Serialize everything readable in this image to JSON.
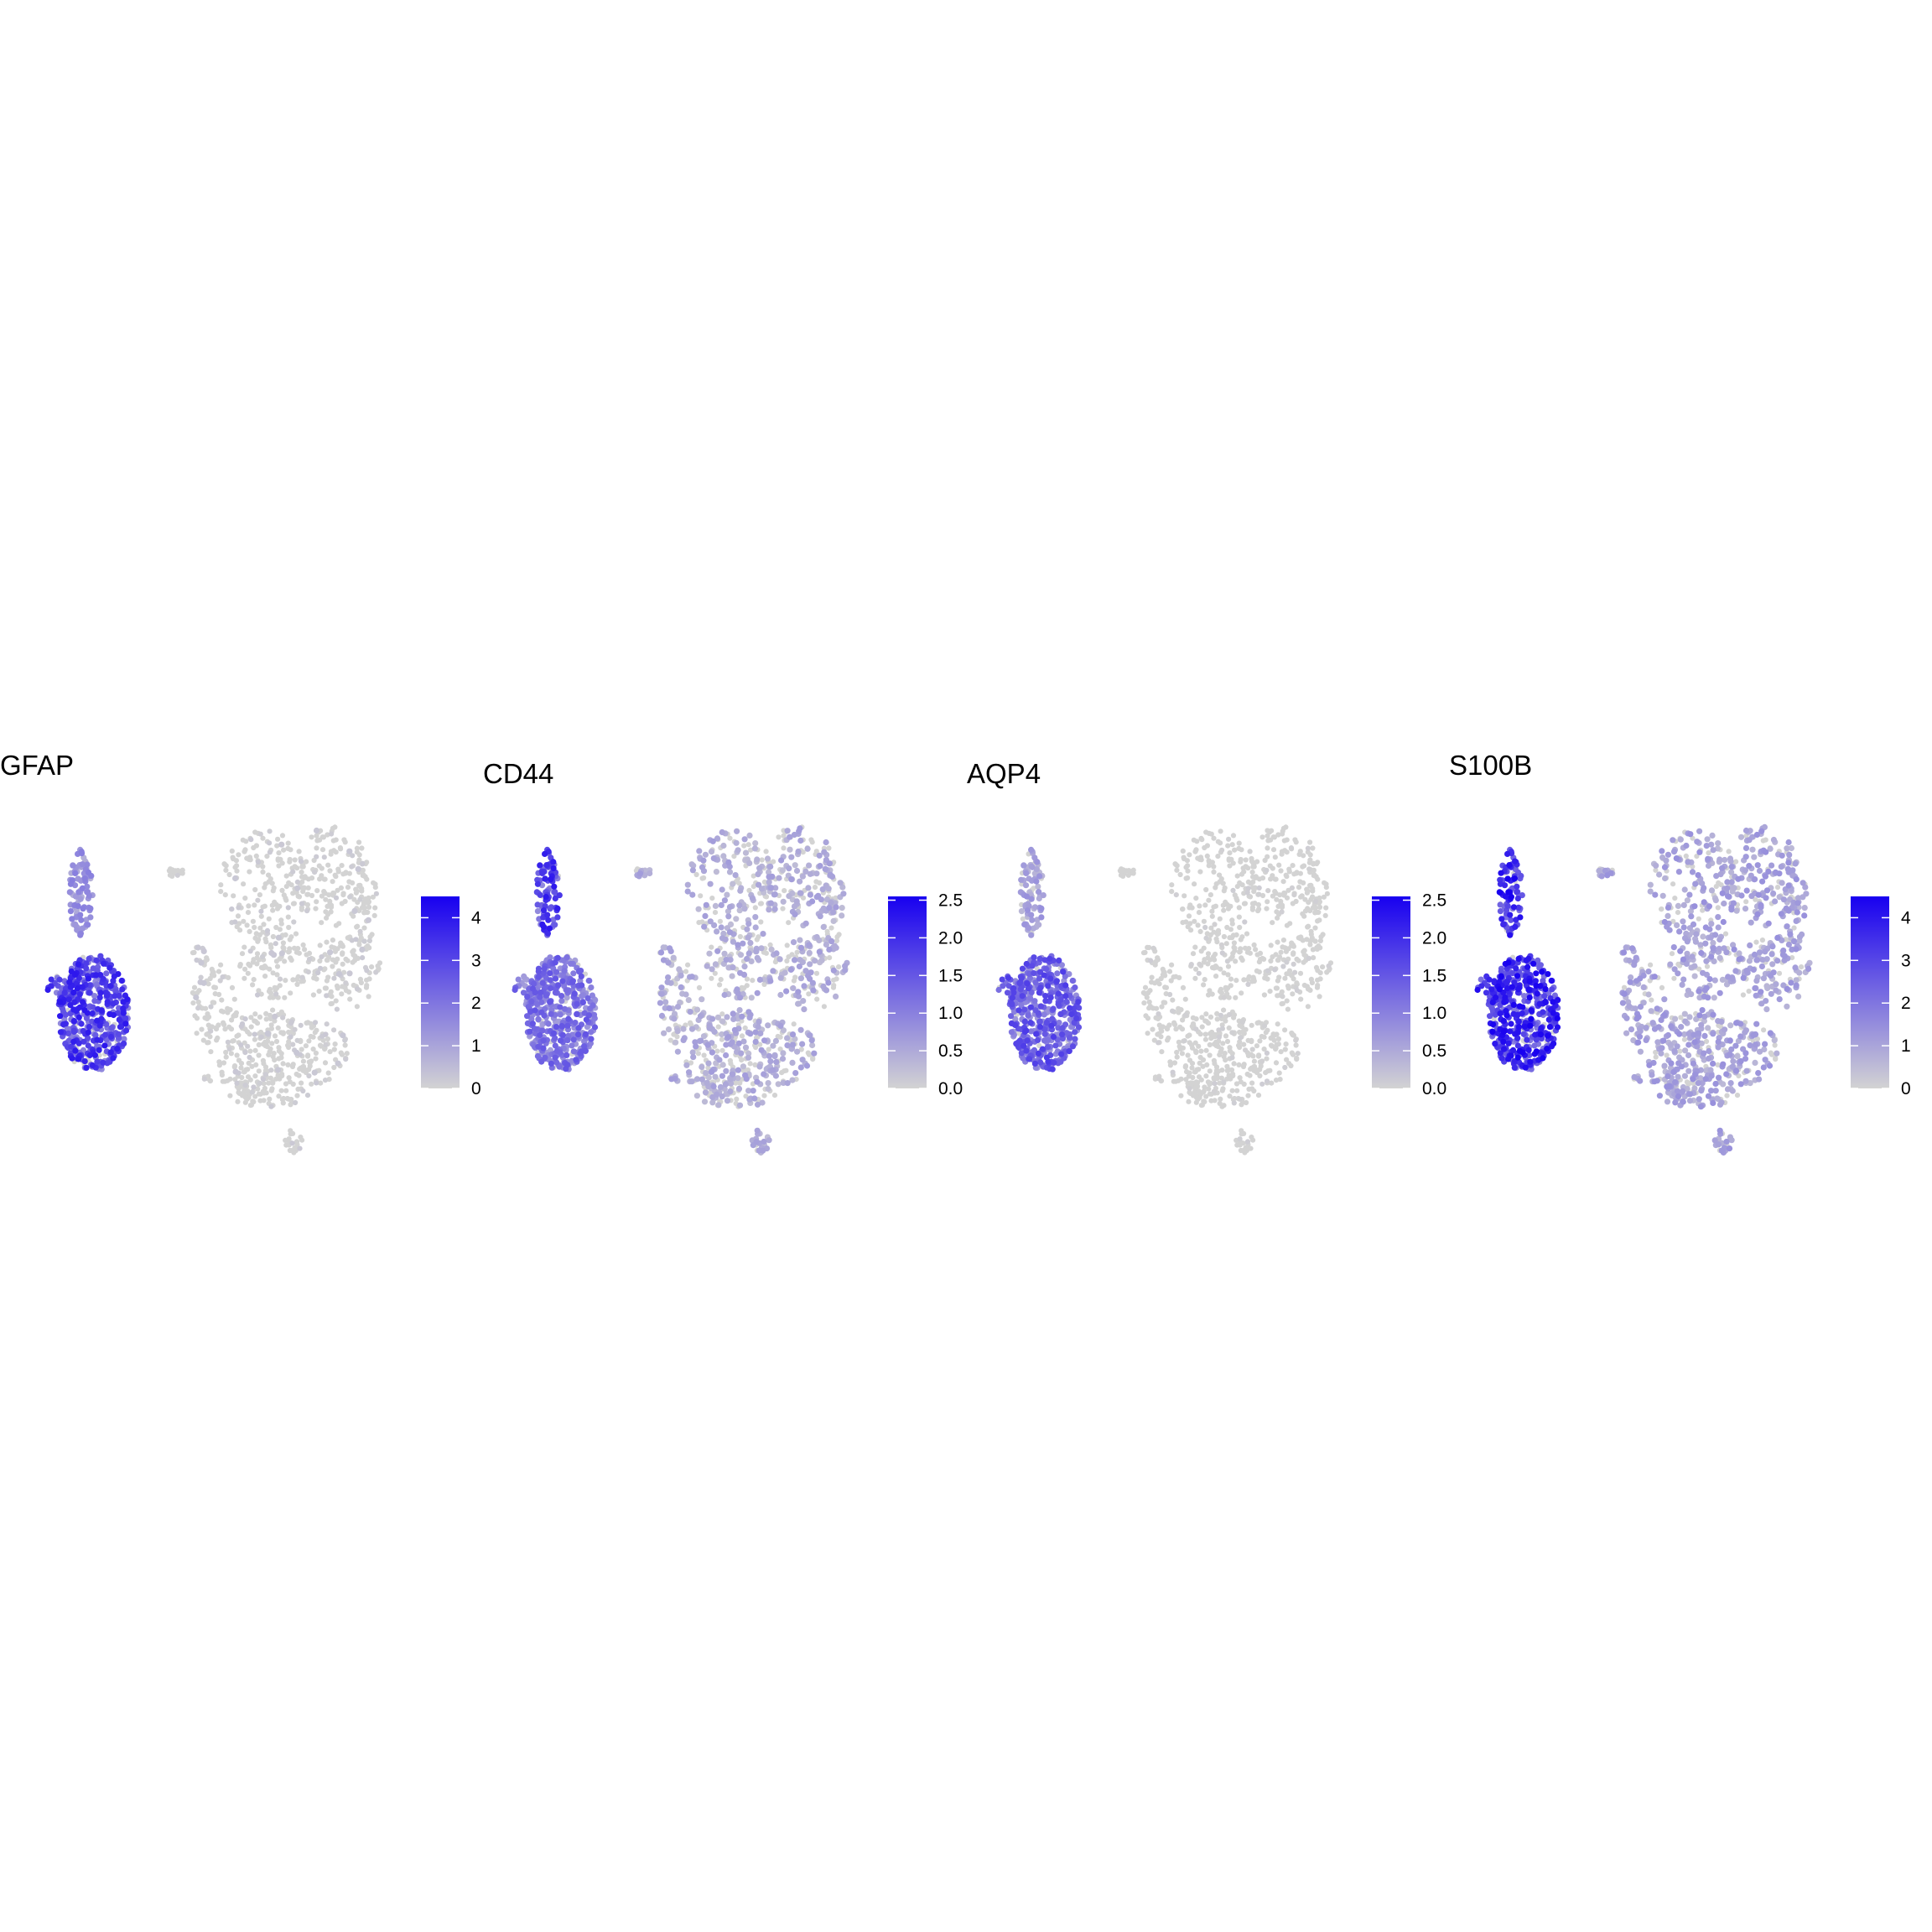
{
  "figure": {
    "colors": {
      "low": "#d3d3d3",
      "high": "#1800f0",
      "background": "#ffffff"
    }
  },
  "chart_data": [
    {
      "type": "scatter",
      "title": "GFAP",
      "colorbar": {
        "range": [
          0,
          4.5
        ],
        "ticks": [
          "0",
          "1",
          "2",
          "3",
          "4"
        ],
        "tick_values": [
          0,
          1,
          2,
          3,
          4
        ]
      },
      "legend": "right",
      "grid": false,
      "axes": false,
      "expression": {
        "astro_lower": 0.62,
        "astro_upper": 0.28,
        "others": 0.04
      }
    },
    {
      "type": "scatter",
      "title": "CD44",
      "colorbar": {
        "range": [
          0,
          2.55
        ],
        "ticks": [
          "0.0",
          "0.5",
          "1.0",
          "1.5",
          "2.0",
          "2.5"
        ],
        "tick_values": [
          0,
          0.5,
          1.0,
          1.5,
          2.0,
          2.5
        ]
      },
      "legend": "right",
      "grid": false,
      "axes": false,
      "expression": {
        "astro_lower": 0.42,
        "astro_upper": 0.62,
        "others": 0.18
      }
    },
    {
      "type": "scatter",
      "title": "AQP4",
      "colorbar": {
        "range": [
          0,
          2.55
        ],
        "ticks": [
          "0.0",
          "0.5",
          "1.0",
          "1.5",
          "2.0",
          "2.5"
        ],
        "tick_values": [
          0,
          0.5,
          1.0,
          1.5,
          2.0,
          2.5
        ]
      },
      "legend": "right",
      "grid": false,
      "axes": false,
      "expression": {
        "astro_lower": 0.5,
        "astro_upper": 0.22,
        "others": 0.02
      }
    },
    {
      "type": "scatter",
      "title": "S100B",
      "colorbar": {
        "range": [
          0,
          4.5
        ],
        "ticks": [
          "0",
          "1",
          "2",
          "3",
          "4"
        ],
        "tick_values": [
          0,
          1,
          2,
          3,
          4
        ]
      },
      "legend": "right",
      "grid": false,
      "axes": false,
      "expression": {
        "astro_lower": 0.7,
        "astro_upper": 0.72,
        "others": 0.22
      }
    }
  ]
}
